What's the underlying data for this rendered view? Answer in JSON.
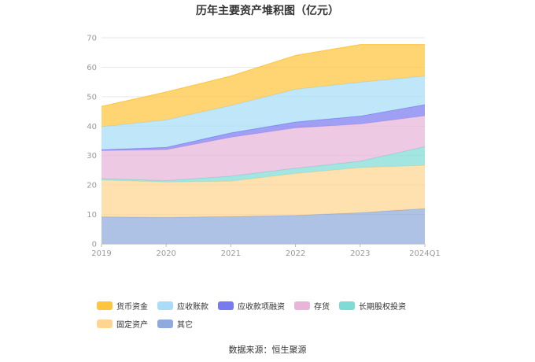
{
  "chart_data": {
    "type": "area",
    "title": "历年主要资产堆积图（亿元）",
    "categories": [
      "2019",
      "2020",
      "2021",
      "2022",
      "2023",
      "2024Q1"
    ],
    "ylim": [
      0,
      70
    ],
    "yticks": [
      "0",
      "10",
      "20",
      "30",
      "40",
      "50",
      "60",
      "70"
    ],
    "grid": true,
    "legend_position": "bottom",
    "series": [
      {
        "name": "其它",
        "color": "#8faadc",
        "values": [
          9.2,
          9.0,
          9.3,
          9.7,
          10.6,
          12.0
        ]
      },
      {
        "name": "固定资产",
        "color": "#ffd591",
        "values": [
          12.5,
          12.0,
          12.0,
          14.2,
          15.3,
          14.7
        ]
      },
      {
        "name": "长期股权投资",
        "color": "#7fdbd5",
        "values": [
          0.5,
          0.5,
          1.7,
          1.8,
          2.2,
          6.3
        ]
      },
      {
        "name": "存货",
        "color": "#e8b4d8",
        "values": [
          9.5,
          10.5,
          13.2,
          13.7,
          12.6,
          10.5
        ]
      },
      {
        "name": "应收款项融资",
        "color": "#7a7af0",
        "values": [
          0.3,
          0.8,
          1.5,
          2.0,
          2.7,
          3.8
        ]
      },
      {
        "name": "应收账款",
        "color": "#a8dcf7",
        "values": [
          7.8,
          9.3,
          9.3,
          11.1,
          11.5,
          9.7
        ]
      },
      {
        "name": "货币资金",
        "color": "#ffc53d",
        "values": [
          6.9,
          9.5,
          10.0,
          11.5,
          12.8,
          10.7
        ]
      }
    ],
    "legend_order": [
      "货币资金",
      "应收账款",
      "应收款项融资",
      "存货",
      "长期股权投资",
      "固定资产",
      "其它"
    ]
  },
  "source_text": "数据来源：恒生聚源"
}
